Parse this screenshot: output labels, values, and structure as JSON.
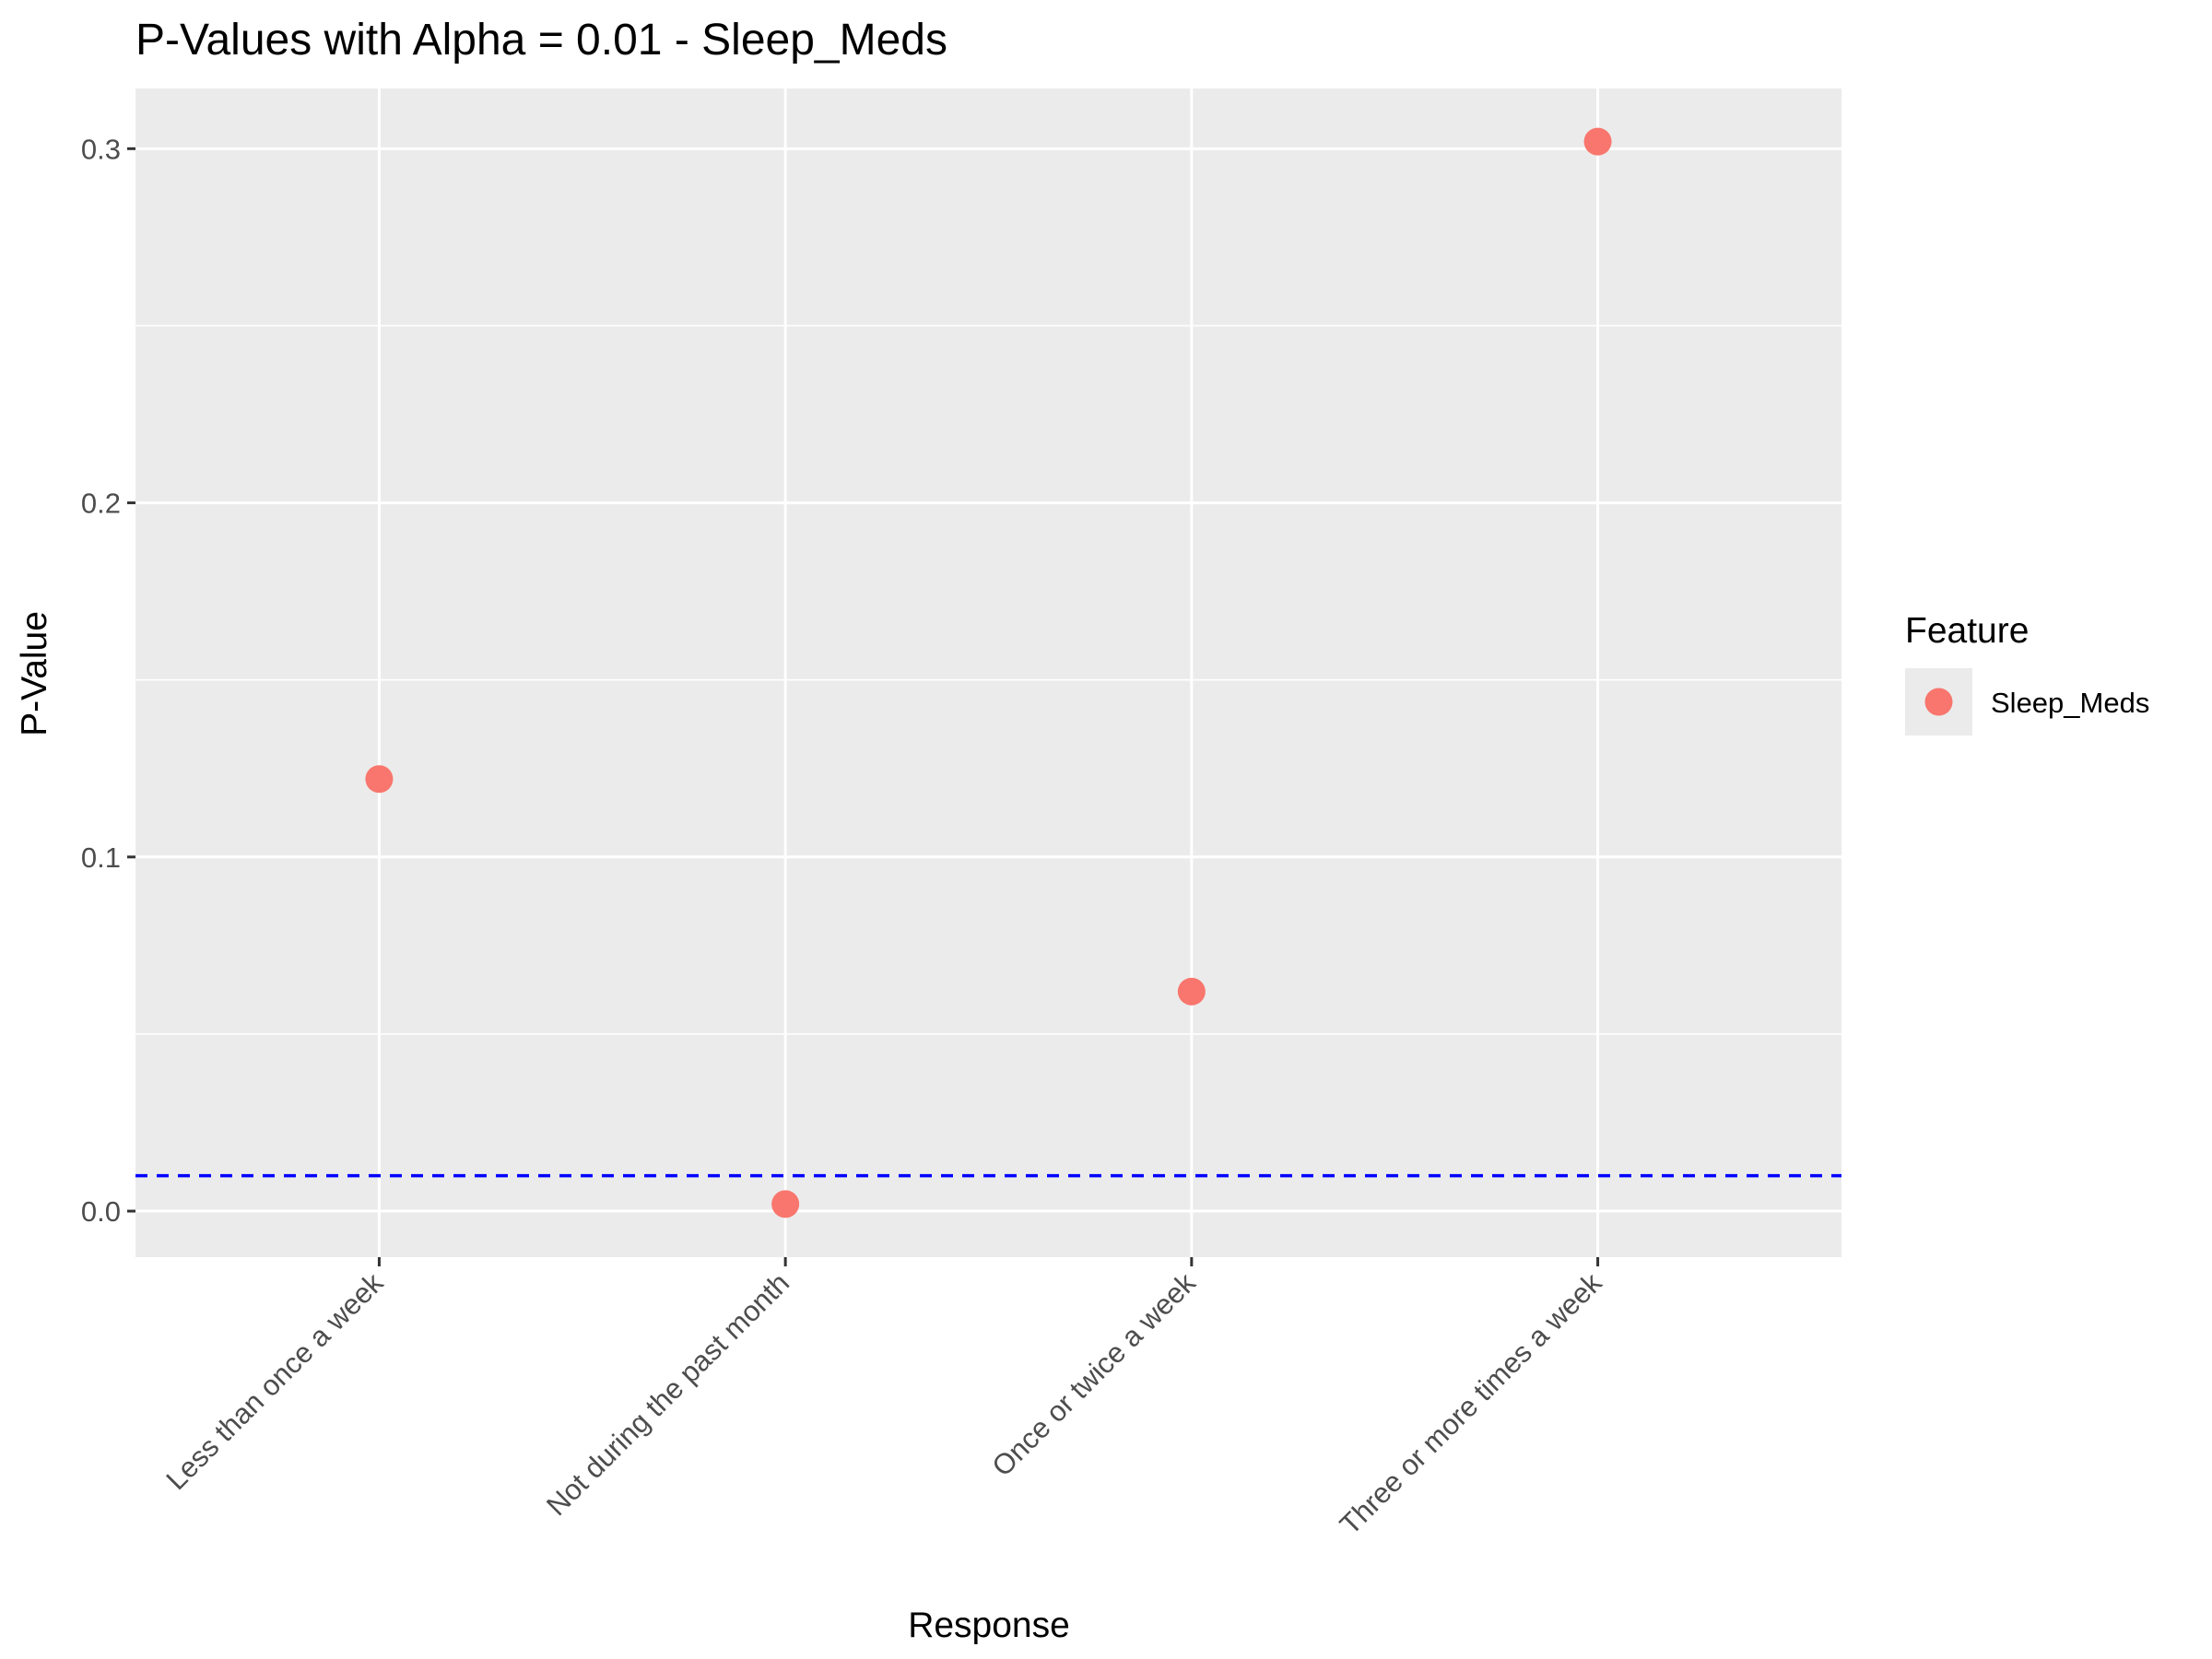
{
  "chart_data": {
    "type": "scatter",
    "title": "P-Values with Alpha = 0.01 - Sleep_Meds",
    "xlabel": "Response",
    "ylabel": "P-Value",
    "categories": [
      "Less than once a week",
      "Not during the past month",
      "Once or twice a week",
      "Three or more times a week"
    ],
    "series": [
      {
        "name": "Sleep_Meds",
        "values": [
          0.122,
          0.002,
          0.062,
          0.302
        ],
        "color": "#F8766D"
      }
    ],
    "y_ticks": [
      0.0,
      0.1,
      0.2,
      0.3
    ],
    "y_tick_labels": [
      "0.0",
      "0.1",
      "0.2",
      "0.3"
    ],
    "ylim": [
      -0.013,
      0.317
    ],
    "reference_line": {
      "y": 0.01,
      "style": "dashed",
      "color": "#0000FF"
    },
    "legend": {
      "title": "Feature",
      "position": "right"
    },
    "panel_background": "#EBEBEB",
    "grid_color": "#FFFFFF",
    "grid": true
  }
}
